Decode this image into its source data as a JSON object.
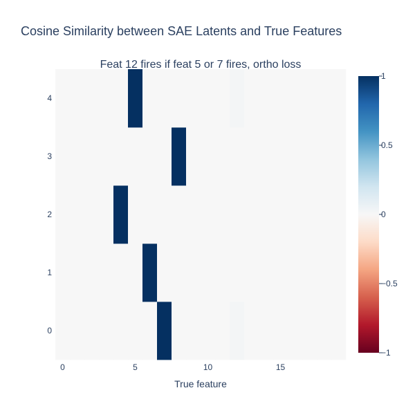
{
  "chart_data": {
    "type": "heatmap",
    "title": "Cosine Similarity between SAE Latents and True Features",
    "subtitle": "Feat 12 fires if feat 5 or 7 fires, ortho loss",
    "xlabel": "True feature",
    "ylabel": "",
    "x": [
      0,
      1,
      2,
      3,
      4,
      5,
      6,
      7,
      8,
      9,
      10,
      11,
      12,
      13,
      14,
      15,
      16,
      17,
      18,
      19
    ],
    "y": [
      0,
      1,
      2,
      3,
      4
    ],
    "xlim": [
      -0.5,
      19.5
    ],
    "ylim": [
      -0.5,
      4.5
    ],
    "x_ticks": [
      0,
      5,
      10,
      15
    ],
    "y_ticks": [
      0,
      1,
      2,
      3,
      4
    ],
    "z": [
      [
        0,
        0,
        0,
        0,
        0,
        0,
        0,
        1,
        0,
        0,
        0,
        0,
        0.02,
        0,
        0,
        0,
        0,
        0,
        0,
        0
      ],
      [
        0,
        0,
        0,
        0,
        0,
        0,
        1,
        0,
        0,
        0,
        0,
        0,
        0,
        0,
        0,
        0,
        0,
        0,
        0,
        0
      ],
      [
        0,
        0,
        0,
        0,
        1,
        0,
        0,
        0,
        0,
        0,
        0,
        0,
        0,
        0,
        0,
        0,
        0,
        0,
        0,
        0
      ],
      [
        0,
        0,
        0,
        0,
        0,
        0,
        0,
        0,
        1,
        0,
        0,
        0,
        0,
        0,
        0,
        0,
        0,
        0,
        0,
        0
      ],
      [
        0,
        0,
        0,
        0,
        0,
        1,
        0,
        0,
        0,
        0,
        0,
        0,
        0.02,
        0,
        0,
        0,
        0,
        0,
        0,
        0
      ]
    ],
    "zlim": [
      -1,
      1
    ],
    "colorscale": "RdBu",
    "colorscale_stops": [
      "#67001f",
      "#b2182b",
      "#d6604d",
      "#f4a582",
      "#fddbc7",
      "#f7f7f7",
      "#d1e5f0",
      "#92c5de",
      "#4393c3",
      "#2166ac",
      "#053061"
    ],
    "colorbar_ticks": [
      1,
      0.5,
      0,
      -0.5,
      -1
    ],
    "colorbar_tick_labels": [
      "1",
      "0.5",
      "0",
      "−0.5",
      "−1"
    ],
    "grid": false,
    "legend": "none"
  }
}
